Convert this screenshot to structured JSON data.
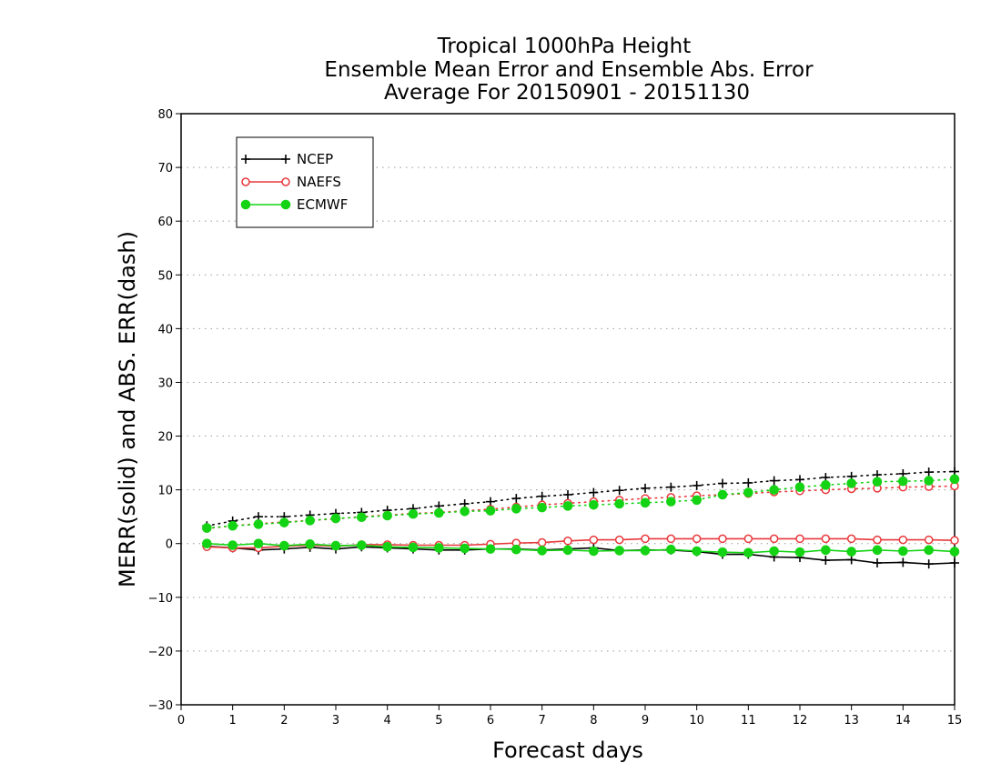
{
  "chart_data": {
    "type": "line",
    "title": [
      "Tropical 1000hPa Height",
      "Ensemble Mean Error and Ensemble Abs. Error",
      "Average For 20150901 - 20151130"
    ],
    "xlabel": "Forecast days",
    "ylabel": "MERR(solid) and ABS. ERR(dash)",
    "xlim": [
      0,
      15
    ],
    "ylim": [
      -30,
      80
    ],
    "xticks": [
      "0",
      "1",
      "2",
      "3",
      "4",
      "5",
      "6",
      "7",
      "8",
      "9",
      "10",
      "11",
      "12",
      "13",
      "14",
      "15"
    ],
    "yticks": [
      "−30",
      "−20",
      "−10",
      "0",
      "10",
      "20",
      "30",
      "40",
      "50",
      "60",
      "70",
      "80"
    ],
    "grid": "horizontal dotted",
    "legend_position": "top-left",
    "x": [
      0.5,
      1.0,
      1.5,
      2.0,
      2.5,
      3.0,
      3.5,
      4.0,
      4.5,
      5.0,
      5.5,
      6.0,
      6.5,
      7.0,
      7.5,
      8.0,
      8.5,
      9.0,
      9.5,
      10.0,
      10.5,
      11.0,
      11.5,
      12.0,
      12.5,
      13.0,
      13.5,
      14.0,
      14.5,
      15.0
    ],
    "series": [
      {
        "name": "NCEP",
        "color": "#000000",
        "marker": "plus",
        "merr": [
          -0.5,
          -0.8,
          -1.2,
          -1.0,
          -0.7,
          -1.0,
          -0.6,
          -0.8,
          -1.0,
          -1.2,
          -1.2,
          -1.0,
          -1.0,
          -1.2,
          -1.0,
          -0.8,
          -1.3,
          -1.2,
          -1.2,
          -1.5,
          -2.0,
          -2.0,
          -2.5,
          -2.6,
          -3.1,
          -3.0,
          -3.6,
          -3.5,
          -3.8,
          -3.6
        ],
        "abs_err": [
          3.3,
          4.2,
          5.0,
          5.0,
          5.3,
          5.6,
          5.8,
          6.2,
          6.5,
          7.0,
          7.4,
          7.8,
          8.4,
          8.8,
          9.1,
          9.5,
          9.9,
          10.3,
          10.5,
          10.8,
          11.2,
          11.3,
          11.7,
          11.9,
          12.3,
          12.5,
          12.8,
          13.0,
          13.3,
          13.4
        ]
      },
      {
        "name": "NAEFS",
        "color": "#e8383c",
        "marker": "open-circle",
        "merr": [
          -0.6,
          -0.8,
          -0.8,
          -0.5,
          -0.3,
          -0.5,
          -0.2,
          -0.2,
          -0.3,
          -0.3,
          -0.3,
          -0.1,
          0.1,
          0.2,
          0.5,
          0.7,
          0.7,
          0.9,
          0.9,
          0.9,
          0.9,
          0.9,
          0.9,
          0.9,
          0.9,
          0.9,
          0.7,
          0.7,
          0.7,
          0.6
        ],
        "abs_err": [
          2.8,
          3.3,
          3.7,
          4.0,
          4.3,
          4.6,
          5.0,
          5.3,
          5.6,
          5.8,
          6.1,
          6.4,
          6.8,
          7.2,
          7.5,
          7.8,
          8.1,
          8.4,
          8.6,
          8.9,
          9.1,
          9.3,
          9.6,
          9.8,
          10.0,
          10.2,
          10.3,
          10.5,
          10.6,
          10.7
        ]
      },
      {
        "name": "ECMWF",
        "color": "#14d314",
        "marker": "filled-circle",
        "merr": [
          0.0,
          -0.3,
          0.0,
          -0.4,
          -0.1,
          -0.4,
          -0.3,
          -0.6,
          -0.7,
          -0.8,
          -0.9,
          -1.0,
          -1.1,
          -1.3,
          -1.2,
          -1.4,
          -1.3,
          -1.3,
          -1.1,
          -1.4,
          -1.6,
          -1.7,
          -1.4,
          -1.6,
          -1.2,
          -1.5,
          -1.2,
          -1.4,
          -1.2,
          -1.5
        ],
        "abs_err": [
          2.9,
          3.3,
          3.6,
          3.9,
          4.3,
          4.7,
          4.9,
          5.2,
          5.5,
          5.7,
          6.0,
          6.1,
          6.5,
          6.7,
          7.0,
          7.2,
          7.4,
          7.6,
          7.8,
          8.1,
          9.1,
          9.5,
          10.0,
          10.5,
          10.9,
          11.2,
          11.5,
          11.6,
          11.7,
          12.0
        ]
      }
    ]
  }
}
